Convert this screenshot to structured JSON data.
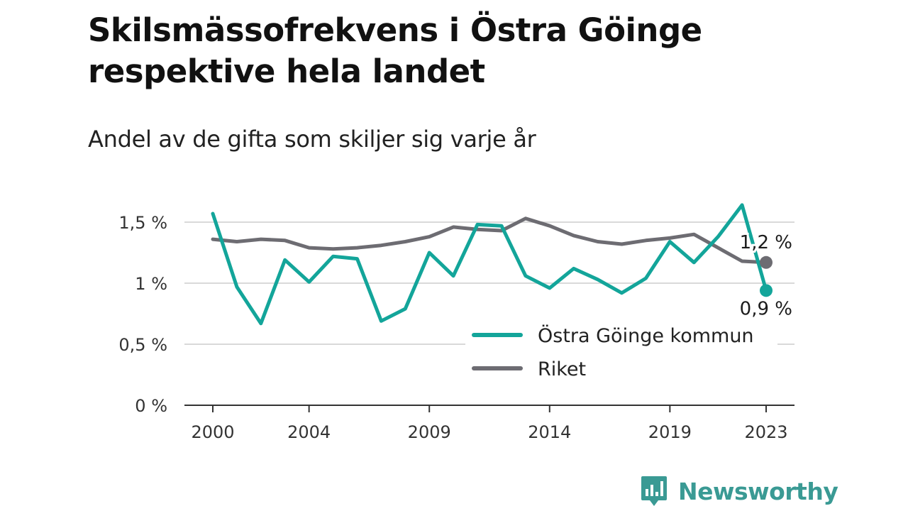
{
  "title": "Skilsmässofrekvens i Östra Göinge respektive hela landet",
  "subtitle": "Andel av de gifta som skiljer sig varje år",
  "brand": {
    "name": "Newsworthy",
    "icon": "newsworthy-logo-icon",
    "color": "#3a9a94"
  },
  "chart_data": {
    "type": "line",
    "title": "Skilsmässofrekvens i Östra Göinge respektive hela landet",
    "subtitle": "Andel av de gifta som skiljer sig varje år",
    "xlabel": "",
    "ylabel": "",
    "x": [
      2000,
      2001,
      2002,
      2003,
      2004,
      2005,
      2006,
      2007,
      2008,
      2009,
      2010,
      2011,
      2012,
      2013,
      2014,
      2015,
      2016,
      2017,
      2018,
      2019,
      2020,
      2021,
      2022,
      2023
    ],
    "x_ticks": [
      2000,
      2004,
      2009,
      2014,
      2019,
      2023
    ],
    "x_tick_labels": [
      "2000",
      "2004",
      "2009",
      "2014",
      "2019",
      "2023"
    ],
    "ylim": [
      0,
      1.75
    ],
    "y_ticks": [
      0,
      0.5,
      1,
      1.5
    ],
    "y_tick_labels": [
      "0 %",
      "0,5 %",
      "1 %",
      "1,5 %"
    ],
    "grid": true,
    "legend_position": "bottom-right",
    "series": [
      {
        "name": "Östra Göinge kommun",
        "color": "#13a59a",
        "values": [
          1.57,
          0.97,
          0.67,
          1.19,
          1.01,
          1.22,
          1.2,
          0.69,
          0.79,
          1.25,
          1.06,
          1.48,
          1.47,
          1.06,
          0.96,
          1.12,
          1.03,
          0.92,
          1.04,
          1.34,
          1.17,
          1.38,
          1.64,
          0.94
        ],
        "end_label": "0,9 %"
      },
      {
        "name": "Riket",
        "color": "#6d6c72",
        "values": [
          1.36,
          1.34,
          1.36,
          1.35,
          1.29,
          1.28,
          1.29,
          1.31,
          1.34,
          1.38,
          1.46,
          1.44,
          1.43,
          1.53,
          1.47,
          1.39,
          1.34,
          1.32,
          1.35,
          1.37,
          1.4,
          1.29,
          1.18,
          1.17
        ],
        "end_label": "1,2 %"
      }
    ]
  }
}
